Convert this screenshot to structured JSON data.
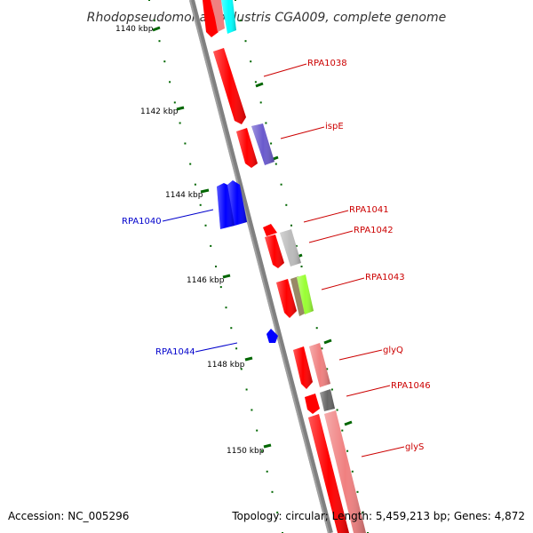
{
  "title": "Rhodopseudomonas palustris CGA009, complete genome",
  "footer": {
    "accession": "Accession: NC_005296",
    "summary": "Topology: circular; Length: 5,459,213 bp; Genes: 4,872"
  },
  "ticks": [
    {
      "label": "1140 kbp"
    },
    {
      "label": "1142 kbp"
    },
    {
      "label": "1144 kbp"
    },
    {
      "label": "1146 kbp"
    },
    {
      "label": "1148 kbp"
    },
    {
      "label": "1150 kbp"
    }
  ],
  "gene_labels": [
    {
      "text": "RPA1038",
      "color": "#cc0000"
    },
    {
      "text": "ispE",
      "color": "#cc0000"
    },
    {
      "text": "RPA1041",
      "color": "#cc0000"
    },
    {
      "text": "RPA1042",
      "color": "#cc0000"
    },
    {
      "text": "RPA1043",
      "color": "#cc0000"
    },
    {
      "text": "glyQ",
      "color": "#cc0000"
    },
    {
      "text": "RPA1046",
      "color": "#cc0000"
    },
    {
      "text": "glyS",
      "color": "#cc0000"
    },
    {
      "text": "RPA1040",
      "color": "#0000cc"
    },
    {
      "text": "RPA1044",
      "color": "#0000cc"
    }
  ],
  "colors": {
    "backbone": "#808080",
    "dotted_ring": "#006600",
    "tick_mark": "#006600",
    "forward_gene": "#ff0000",
    "reverse_gene": "#0000ff",
    "pink_feature": "#f08080",
    "cyan_feature": "#00ffff",
    "purple_feature": "#6a5acd",
    "grey_feature": "#bbbbbb",
    "lime_feature": "#99ff33",
    "olive_feature": "#998866",
    "dark_grey_feature": "#666666"
  }
}
